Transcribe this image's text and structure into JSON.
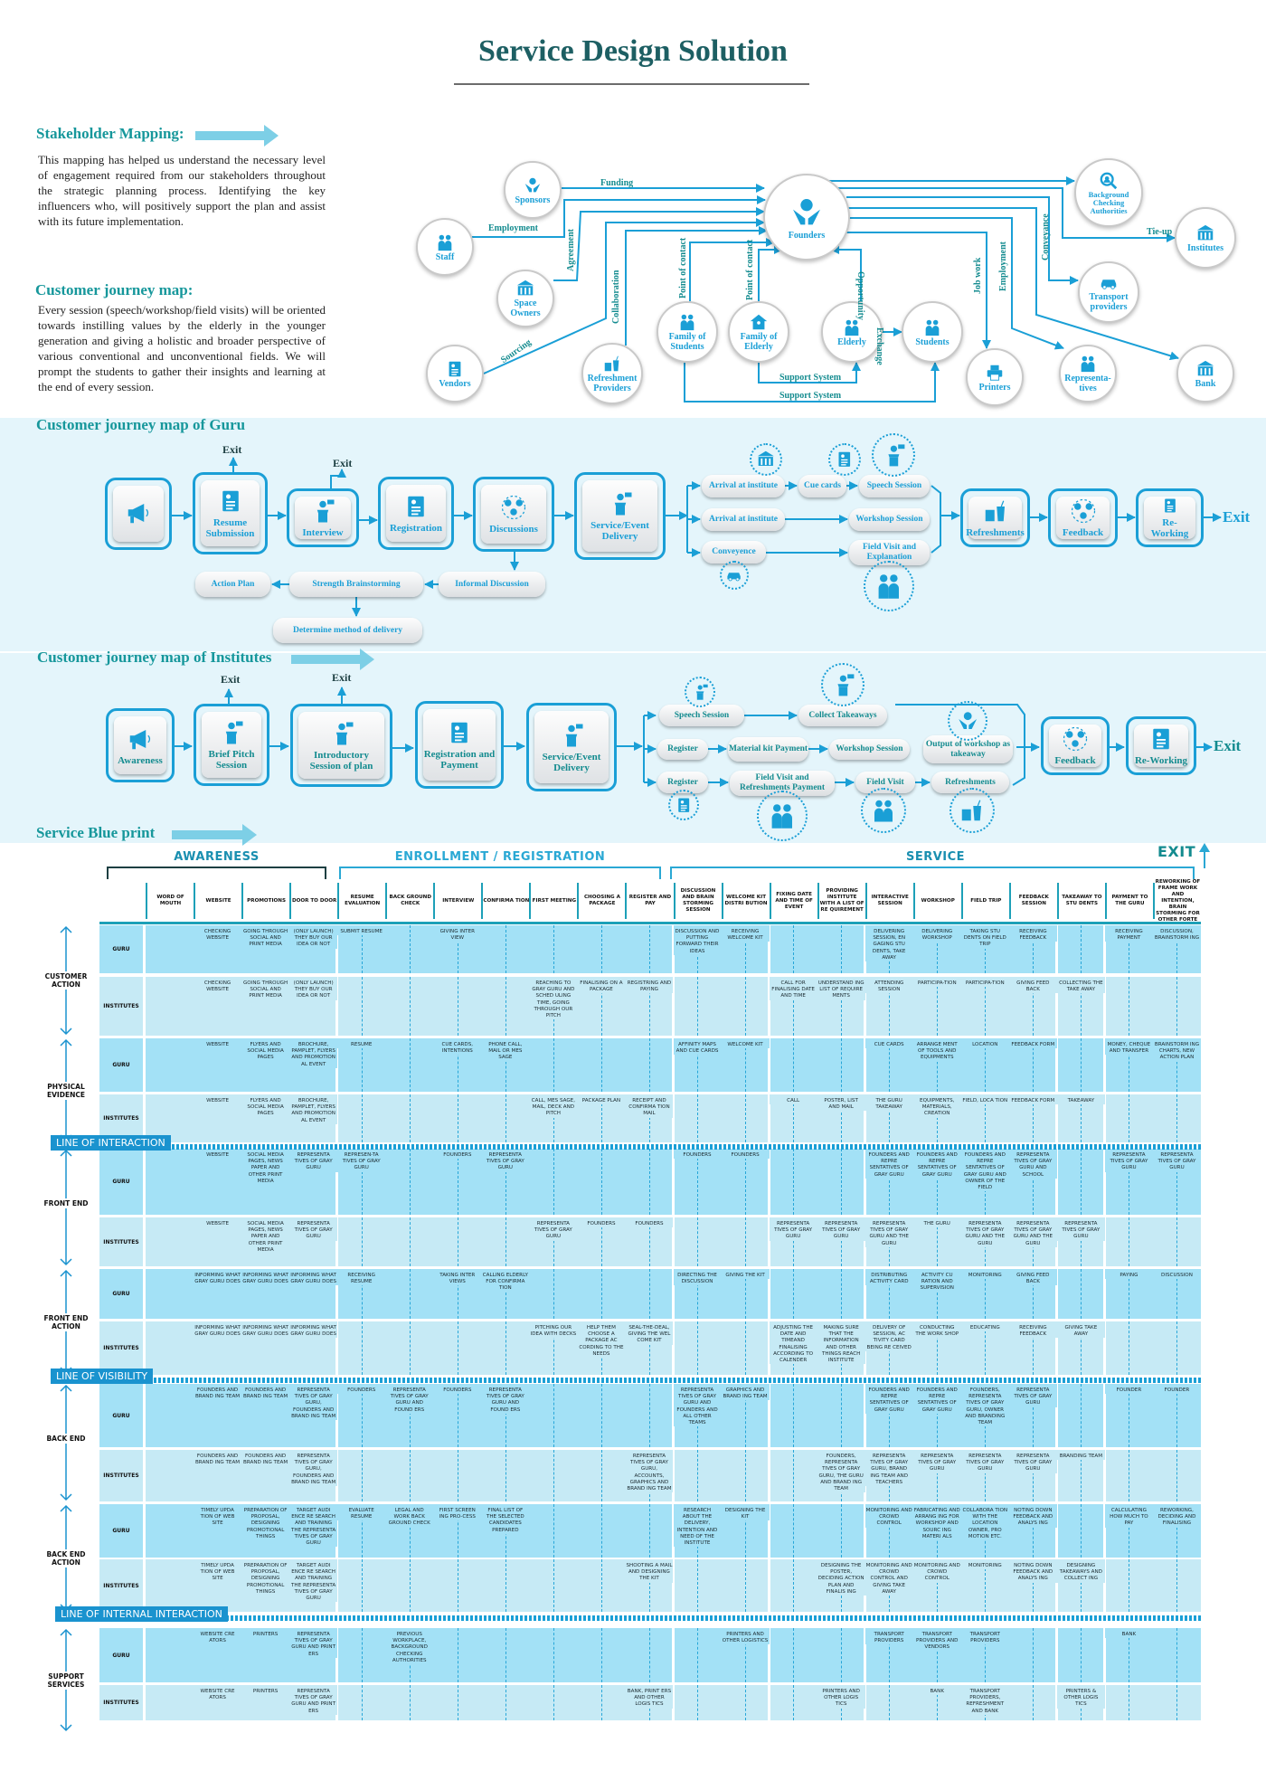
{
  "title": "Service Design Solution",
  "colors": {
    "accent": "#1a9fd6",
    "teal_heading": "#16979b",
    "band": "#e4f5fb",
    "guru_row": "#a3e1f6",
    "institute_row": "#c6eaf5",
    "line_box": "#1a93cf"
  },
  "stakeholder_section": {
    "heading": "Stakeholder Mapping:",
    "body": "This mapping has helped us understand the necessary level of engagement required from our stakeholders throughout the strategic planning process. Identifying the key influencers who, will positively support the plan and assist with its future implementation."
  },
  "journey_intro": {
    "heading": "Customer journey map:",
    "body": "Every session (speech/workshop/field visits) will be oriented towards instilling values by the elderly in the younger generation and giving a holistic and broader perspective of various conventional and unconventional fields. We will prompt the students to gather their insights and learning at the end of every session."
  },
  "stakeholder_map": {
    "nodes": [
      {
        "label": "Founders",
        "icon": "hands-icon"
      },
      {
        "label": "Sponsors",
        "icon": "donation-icon"
      },
      {
        "label": "Staff",
        "icon": "team-icon"
      },
      {
        "label": "Space Owners",
        "icon": "building-icon"
      },
      {
        "label": "Vendors",
        "icon": "shop-icon"
      },
      {
        "label": "Refreshment Providers",
        "icon": "food-icon"
      },
      {
        "label": "Family of Students",
        "icon": "family-icon"
      },
      {
        "label": "Family of Elderly",
        "icon": "house-icon"
      },
      {
        "label": "Elderly",
        "icon": "elderly-icon"
      },
      {
        "label": "Students",
        "icon": "students-icon"
      },
      {
        "label": "Printers",
        "icon": "printer-icon"
      },
      {
        "label": "Representa-tives",
        "icon": "person-icon"
      },
      {
        "label": "Bank",
        "icon": "bank-icon"
      },
      {
        "label": "Transport providers",
        "icon": "car-icon"
      },
      {
        "label": "Background Checking Authorities",
        "icon": "search-person-icon"
      },
      {
        "label": "Institutes",
        "icon": "institute-icon"
      }
    ],
    "edge_labels": [
      "Funding",
      "Employment",
      "Agreement",
      "Sourcing",
      "Collaboration",
      "Point of contact",
      "Point of contact",
      "Opportunity",
      "Exchange",
      "Support System",
      "Support System",
      "Job work",
      "Employment",
      "Conveyance",
      "Tie-up"
    ]
  },
  "guru_map": {
    "heading": "Customer journey map of Guru",
    "steps": [
      {
        "label": "",
        "icon": "megaphone-icon"
      },
      {
        "label": "Resume Submission",
        "icon": "resume-icon"
      },
      {
        "label": "Interview",
        "icon": "interview-icon"
      },
      {
        "label": "Registration",
        "icon": "clipboard-icon"
      },
      {
        "label": "Discussions",
        "icon": "discussion-icon"
      },
      {
        "label": "Service/Event Delivery",
        "icon": "speaker-icon"
      },
      {
        "label": "Refreshments",
        "icon": "refreshment-icon"
      },
      {
        "label": "Feedback",
        "icon": "feedback-icon"
      },
      {
        "label": "Re-Working",
        "icon": "checklist-icon"
      }
    ],
    "sub_steps": [
      "Action Plan",
      "Strength Brainstorming",
      "Informal Discussion",
      "Determine method of delivery"
    ],
    "branches": [
      "Arrival at institute",
      "Cue cards",
      "Speech Session",
      "Arrival at institute",
      "Workshop Session",
      "Conveyence",
      "Field Visit and Explanation"
    ],
    "exit_labels": [
      "Exit",
      "Exit"
    ],
    "final_exit": "Exit"
  },
  "institutes_map": {
    "heading": "Customer journey map of Institutes",
    "steps": [
      {
        "label": "Awareness",
        "icon": "megaphone-icon"
      },
      {
        "label": "Brief Pitch Session",
        "icon": "pitch-icon"
      },
      {
        "label": "Introductory Session of plan",
        "icon": "interview-icon"
      },
      {
        "label": "Registration and Payment",
        "icon": "clipboard-icon"
      },
      {
        "label": "Service/Event Delivery",
        "icon": "speaker-icon"
      },
      {
        "label": "Feedback",
        "icon": "feedback-icon"
      },
      {
        "label": "Re-Working",
        "icon": "checklist-icon"
      }
    ],
    "branches": [
      "Speech Session",
      "Collect Takeaways",
      "Register",
      "Material kit Payment",
      "Workshop Session",
      "Output of workshop as takeaway",
      "Register",
      "Field Visit and Refreshments Payment",
      "Field Visit",
      "Refreshments"
    ],
    "exit_labels": [
      "Exit",
      "Exit"
    ],
    "final_exit": "Exit"
  },
  "blueprint": {
    "heading": "Service Blue print",
    "phases": [
      "AWARENESS",
      "ENROLLMENT / REGISTRATION",
      "SERVICE"
    ],
    "exit_label": "EXIT",
    "columns": [
      "WORD OF MOUTH",
      "WEBSITE",
      "PROMOTIONS",
      "DOOR TO DOOR",
      "RESUME EVALUATION",
      "BACK GROUND CHECK",
      "INTERVIEW",
      "CONFIRMA TION",
      "FIRST MEETING",
      "CHOOSING A PACKAGE",
      "REGISTER AND PAY",
      "DISCUSSION AND BRAIN STORMING SESSION",
      "WELCOME KIT DISTRI BUTION",
      "FIXING DATE AND TIME OF EVENT",
      "PROVIDING INSTITUTE WITH A LIST OF RE QUIREMENT",
      "INTERACTIVE SESSION",
      "WORKSHOP",
      "FIELD TRIP",
      "FEEDBACK SESSION",
      "TAKEAWAY TO STU DENTS",
      "PAYMENT TO THE GURU",
      "REWORKING OF FRAME WORK AND INTENTION, BRAIN STORMING FOR OTHER FORTE"
    ],
    "lines": [
      "LINE OF INTERACTION",
      "LINE OF VISIBILITY",
      "LINE OF INTERNAL INTERACTION"
    ],
    "categories": [
      "CUSTOMER ACTION",
      "PHYSICAL EVIDENCE",
      "FRONT END",
      "FRONT END ACTION",
      "BACK END",
      "BACK END ACTION",
      "SUPPORT SERVICES"
    ],
    "rows": [
      {
        "category": 0,
        "sub": "GURU",
        "cells": {
          "1": "CHECKING WEBSITE",
          "2": "GOING THROUGH SOCIAL AND PRINT MEDIA",
          "3": "(ONLY LAUNCH) THEY BUY OUR IDEA OR NOT",
          "4": "SUBMIT RESUME",
          "6": "GIVING INTER VIEW",
          "11": "DISCUSSION AND PUTTING FORWARD THEIR IDEAS",
          "12": "RECEIVING WELCOME KIT",
          "15": "DELIVERING SESSION, EN GAGING STU DENTS, TAKE AWAY",
          "16": "DELIVERING WORKSHOP",
          "17": "TAKING STU DENTS ON FIELD TRIP",
          "18": "RECEIVING FEEDBACK",
          "20": "RECEIVING PAYMENT",
          "21": "DISCUSSION, BRAINSTORM ING"
        }
      },
      {
        "category": 0,
        "sub": "INSTITUTES",
        "cells": {
          "1": "CHECKING WEBSITE",
          "2": "GOING THROUGH SOCIAL AND PRINT MEDIA",
          "3": "(ONLY LAUNCH) THEY BUY OUR IDEA OR NOT",
          "8": "REACHING TO GRAY GURU AND SCHED ULING TIME, GOING THROUGH OUR PITCH",
          "9": "FINALISING ON A PACKAGE",
          "10": "REGISTRING AND PAYING",
          "13": "CALL FOR FINALISING DATE AND TIME",
          "14": "UNDERSTAND ING LIST OF REQUIRE MENTS",
          "15": "ATTENDING SESSION",
          "16": "PARTICIPA-TION",
          "17": "PARTICIPA-TION",
          "18": "GIVING FEED BACK",
          "19": "COLLECTING THE TAKE AWAY"
        }
      },
      {
        "category": 1,
        "sub": "GURU",
        "cells": {
          "1": "WEBSITE",
          "2": "FLYERS AND SOCIAL MEDIA PAGES",
          "3": "BROCHURE, PAMPLET, FLYERS AND PROMOTION AL EVENT",
          "4": "RESUME",
          "6": "CUE CARDS, INTENTIONS",
          "7": "PHONE CALL, MAIL OR MES SAGE",
          "11": "AFFINITY MAPS AND CUE CARDS",
          "12": "WELCOME KIT",
          "15": "CUE CARDS",
          "16": "ARRANGE MENT OF TOOLS AND EQUIPMENTS",
          "17": "LOCATION",
          "18": "FEEDBACK FORM",
          "20": "MONEY, CHEQUE AND TRANSFER",
          "21": "BRAINSTORM ING CHARTS, NEW ACTION PLAN"
        }
      },
      {
        "category": 1,
        "sub": "INSTITUTES",
        "cells": {
          "1": "WEBSITE",
          "2": "FLYERS AND SOCIAL MEDIA PAGES",
          "3": "BROCHURE, PAMPLET, FLYERS AND PROMOTION AL EVENT",
          "8": "CALL, MES SAGE, MAIL, DECK AND PITCH",
          "9": "PACKAGE PLAN",
          "10": "RECEIPT AND CONFIRMA TION MAIL",
          "13": "CALL",
          "14": "POSTER, LIST AND MAIL",
          "15": "THE GURU TAKEAWAY",
          "16": "EQUIPMENTS, MATERIALS, CREATION",
          "17": "FIELD, LOCA TION",
          "18": "FEEDBACK FORM",
          "19": "TAKEAWAY"
        }
      },
      {
        "category": 2,
        "sub": "GURU",
        "cells": {
          "1": "WEBSITE",
          "2": "SOCIAL MEDIA PAGES, NEWS PAPER AND OTHER PRINT MEDIA",
          "3": "REPRESENTA TIVES OF GRAY GURU",
          "4": "REPRESEN-TA TIVES OF GRAY GURU",
          "6": "FOUNDERS",
          "7": "REPRESENTA TIVES OF GRAY GURU",
          "11": "FOUNDERS",
          "12": "FOUNDERS",
          "15": "FOUNDERS AND REPRE SENTATIVES OF GRAY GURU",
          "16": "FOUNDERS AND REPRE SENTATIVES OF GRAY GURU",
          "17": "FOUNDERS AND REPRE SENTATIVES OF GRAY GURU AND OWNER OF THE FIELD",
          "18": "REPRESENTA TIVES OF GRAY GURU AND SCHOOL",
          "20": "REPRESENTA TIVES OF GRAY GURU",
          "21": "REPRESENTA TIVES OF GRAY GURU"
        }
      },
      {
        "category": 2,
        "sub": "INSTITUTES",
        "cells": {
          "1": "WEBSITE",
          "2": "SOCIAL MEDIA PAGES, NEWS PAPER AND OTHER PRINT MEDIA",
          "3": "REPRESENTA TIVES OF GRAY GURU",
          "8": "REPRESENTA TIVES OF GRAY GURU",
          "9": "FOUNDERS",
          "10": "FOUNDERS",
          "13": "REPRESENTA TIVES OF GRAY GURU",
          "14": "REPRESENTA TIVES OF GRAY GURU",
          "15": "REPRESENTA TIVES OF GRAY GURU AND THE GURU",
          "16": "THE GURU",
          "17": "REPRESENTA TIVES OF GRAY GURU AND THE GURU",
          "18": "REPRESENTA TIVES OF GRAY GURU AND THE GURU",
          "19": "REPRESENTA TIVES OF GRAY GURU"
        }
      },
      {
        "category": 3,
        "sub": "GURU",
        "cells": {
          "1": "INFORMING WHAT GRAY GURU DOES",
          "2": "INFORMING WHAT GRAY GURU DOES",
          "3": "INFORMING WHAT GRAY GURU DOES",
          "4": "RECEIVING RESUME",
          "6": "TAKING INTER VIEWS",
          "7": "CALLING ELDERLY FOR CONFIRMA TION",
          "11": "DIRECTING THE DISCUSSION",
          "12": "GIVING THE KIT",
          "15": "DISTRIBUTING ACTIVITY CARD",
          "16": "ACTIVITY CU RATION AND SUPERVISION",
          "17": "MONITORING",
          "18": "GIVING FEED BACK",
          "20": "PAYING",
          "21": "DISCUSSION"
        }
      },
      {
        "category": 3,
        "sub": "INSTITUTES",
        "cells": {
          "1": "INFORMING WHAT GRAY GURU DOES",
          "2": "INFORMING WHAT GRAY GURU DOES",
          "3": "INFORMING WHAT GRAY GURU DOES",
          "8": "PITCHING OUR IDEA WITH DECKS",
          "9": "HELP THEM CHOOSE A PACKAGE AC CORDING TO THE NEEDS",
          "10": "SEAL-THE-DEAL, GIVING THE WEL COME KIT",
          "13": "ADJUSTING THE DATE AND TIMEAND FINALISING ACCORDING TO CALENDER",
          "14": "MAKING SURE THAT THE INFORMATION AND OTHER THINGS REACH INSTITUTE",
          "15": "DELIVERY OF SESSION, AC TIVITY CARD BEING RE CEIVED",
          "16": "CONDUCTING THE WORK SHOP",
          "17": "EDUCATING",
          "18": "RECEIVING FEEDBACK",
          "19": "GIVING TAKE AWAY"
        }
      },
      {
        "category": 4,
        "sub": "GURU",
        "cells": {
          "1": "FOUNDERS AND BRAND ING TEAM",
          "2": "FOUNDERS AND BRAND ING TEAM",
          "3": "REPRESENTA TIVES OF GRAY GURU, FOUNDERS AND BRAND ING TEAM",
          "4": "FOUNDERS",
          "5": "REPRESENTA TIVES OF GRAY GURU AND FOUND ERS",
          "6": "FOUNDERS",
          "7": "REPRESENTA TIVES OF GRAY GURU AND FOUND ERS",
          "11": "REPRESENTA TIVES OF GRAY GURU AND FOUNDERS AND ALL OTHER TEAMS",
          "12": "GRAPHICS AND BRAND ING TEAM",
          "15": "FOUNDERS AND REPRE SENTATIVES OF GRAY GURU",
          "16": "FOUNDERS AND REPRE SENTATIVES OF GRAY GURU",
          "17": "FOUNDERS, REPRESENTA TIVES OF GRAY GURU, OWNER AND BRANDING TEAM",
          "18": "REPRESENTA TIVES OF GRAY GURU",
          "20": "FOUNDER",
          "21": "FOUNDER"
        }
      },
      {
        "category": 4,
        "sub": "INSTITUTES",
        "cells": {
          "1": "FOUNDERS AND BRAND ING TEAM",
          "2": "FOUNDERS AND BRAND ING TEAM",
          "3": "REPRESENTA TIVES OF GRAY GURU, FOUNDERS AND BRAND ING TEAM",
          "10": "REPRESENTA TIVES OF GRAY GURU, ACCOUNTS, GRAPHICS AND BRAND ING TEAM",
          "14": "FOUNDERS, REPRESENTA TIVES OF GRAY GURU, THE GURU AND BRAND ING TEAM",
          "15": "REPRESENTA TIVES OF GRAY GURU, BRAND ING TEAM AND TEACHERS",
          "16": "REPRESENTA TIVES OF GRAY GURU",
          "17": "REPRESENTA TIVES OF GRAY GURU",
          "18": "REPRESENTA TIVES OF GRAY GURU",
          "19": "BRANDING TEAM"
        }
      },
      {
        "category": 5,
        "sub": "GURU",
        "cells": {
          "1": "TIMELY UPDA TION OF WEB SITE",
          "2": "PREPARATION OF PROPOSAL, DESIGNING PROMOTIONAL THINGS",
          "3": "TARGET AUDI ENCE RE SEARCH AND TRAINING THE REPRESENTA TIVES OF GRAY GURU",
          "4": "EVALUATE RESUME",
          "5": "LEGAL AND WORK BACK GROUND CHECK",
          "6": "FIRST SCREEN ING PRO-CESS",
          "7": "FINAL LIST OF THE SELECTED CANDIDATES PREPARED",
          "11": "RESEARCH ABOUT THE DELIVERY, INTENTION AND NEED OF THE INSTITUTE",
          "12": "DESIGNING THE KIT",
          "15": "MONITORING AND CROWD CONTROL",
          "16": "FABRICATING AND ARRANG ING FOR WORKSHOP AND SOURC ING MATERI ALS",
          "17": "COLLABORA TION WITH THE LOCATION OWNER, PRO MOTION ETC.",
          "18": "NOTING DOWN FEEDBACK AND ANALYS ING",
          "20": "CALCULATING HOW MUCH TO PAY",
          "21": "REWORKING, DECIDING AND FINALISING"
        }
      },
      {
        "category": 5,
        "sub": "INSTITUTES",
        "cells": {
          "1": "TIMELY UPDA TION OF WEB SITE",
          "2": "PREPARATION OF PROPOSAL, DESIGNING PROMOTIONAL THINGS",
          "3": "TARGET AUDI ENCE RE SEARCH AND TRAINING THE REPRESENTA TIVES OF GRAY GURU",
          "10": "SHOOTING A MAIL AND DESIGNING THE KIT",
          "14": "DESIGNING THE POSTER, DECIDING ACTION PLAN AND FINALIS ING",
          "15": "MONITORING AND CROWD CONTROL AND GIVING TAKE AWAY",
          "16": "MONITORING AND CROWD CONTROL",
          "17": "MONITORING",
          "18": "NOTING DOWN FEEDBACK AND ANALYS ING",
          "19": "DESIGNING TAKEAWAYS AND COLLECT ING"
        }
      },
      {
        "category": 6,
        "sub": "GURU",
        "cells": {
          "1": "WEBSITE CRE ATORS",
          "2": "PRINTERS",
          "3": "REPRESENTA TIVES OF GRAY GURU AND PRINT ERS",
          "5": "PREVIOUS WORKPLACE, BACKGROUND CHECKING AUTHORITIES",
          "12": "PRINTERS AND OTHER LOGISTICS",
          "15": "TRANSPORT PROVIDERS",
          "16": "TRANSPORT PROVIDERS AND VENDORS",
          "17": "TRANSPORT PROVIDERS",
          "20": "BANK"
        }
      },
      {
        "category": 6,
        "sub": "INSTITUTES",
        "cells": {
          "1": "WEBSITE CRE ATORS",
          "2": "PRINTERS",
          "3": "REPRESENTA TIVES OF GRAY GURU AND PRINT ERS",
          "10": "BANK, PRINT ERS AND OTHER LOGIS TICS",
          "14": "PRINTERS AND OTHER LOGIS TICS",
          "16": "BANK",
          "17": "TRANSPORT PROVIDERS, REFRESHMENT AND BANK",
          "19": "PRINTERS & OTHER LOGIS TICS"
        }
      }
    ]
  }
}
